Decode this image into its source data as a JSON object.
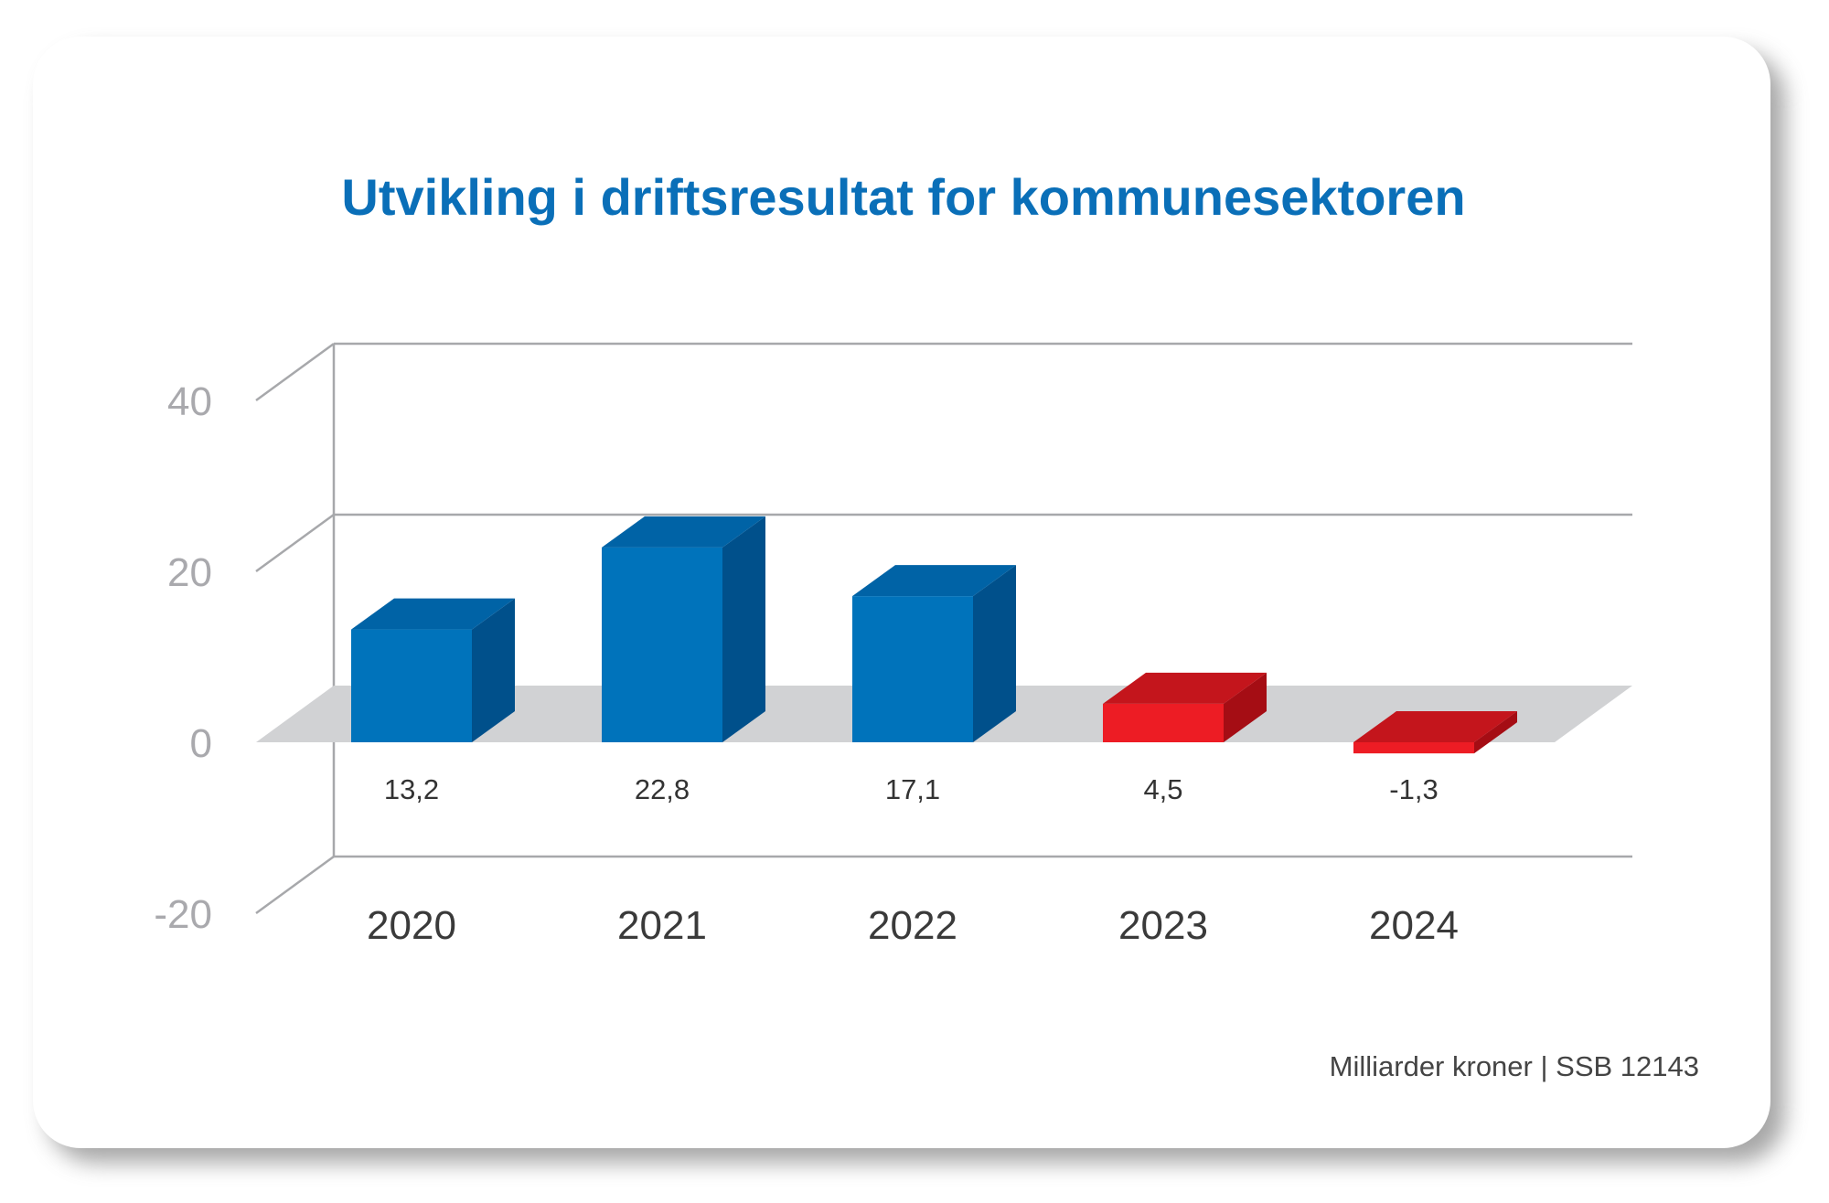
{
  "chart_data": {
    "type": "bar",
    "title": "Utvikling i driftsresultat for kommunesektoren",
    "categories": [
      "2020",
      "2021",
      "2022",
      "2023",
      "2024"
    ],
    "values": [
      13.2,
      22.8,
      17.1,
      4.5,
      -1.3
    ],
    "data_labels": [
      "13,2",
      "22,8",
      "17,1",
      "4,5",
      "-1,3"
    ],
    "ylim": [
      -20,
      40
    ],
    "yticks": [
      40,
      20,
      0,
      -20
    ],
    "ytick_labels": [
      "40",
      "20",
      "0",
      "-20"
    ],
    "grid": true,
    "style": "3d-column",
    "bar_colors": [
      "#0073bb",
      "#0073bb",
      "#0073bb",
      "#ed1c24",
      "#ed1c24"
    ],
    "source": "Milliarder kroner | SSB 12143"
  },
  "colors": {
    "title": "#0a6fb8",
    "positive_front": "#0073bb",
    "positive_side": "#00508b",
    "positive_top": "#0063a6",
    "negative_front": "#ed1c24",
    "negative_side": "#a50d14",
    "negative_top": "#c4151c",
    "floor": "#d1d2d4",
    "gridline": "#a7a8ab"
  }
}
